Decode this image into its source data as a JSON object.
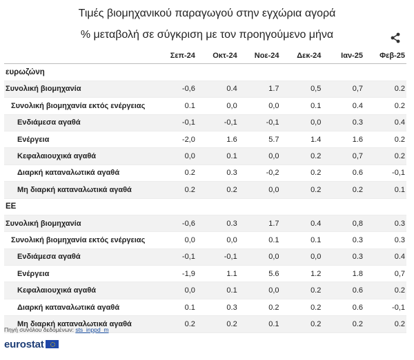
{
  "title_line1": "Τιμές βιομηχανικού παραγωγού στην εγχώρια αγορά",
  "title_line2": "% μεταβολή σε σύγκριση με τον προηγούμενο μήνα",
  "share_icon": "share-icon",
  "columns": [
    "Σεπ-24",
    "Οκτ-24",
    "Νοε-24",
    "Δεκ-24",
    "Ιαν-25",
    "Φεβ-25"
  ],
  "groups": [
    {
      "name": "ευρωζώνη",
      "rows": [
        {
          "label": "Συνολική βιομηχανία",
          "level": 0,
          "values": [
            "-0,6",
            "0.4",
            "1.7",
            "0,5",
            "0,7",
            "0.2"
          ]
        },
        {
          "label": "Συνολική βιομηχανία εκτός ενέργειας",
          "level": 1,
          "values": [
            "0.1",
            "0,0",
            "0,0",
            "0.1",
            "0.4",
            "0.2"
          ]
        },
        {
          "label": "Ενδιάμεσα αγαθά",
          "level": 2,
          "values": [
            "-0,1",
            "-0,1",
            "-0,1",
            "0,0",
            "0.3",
            "0.4"
          ]
        },
        {
          "label": "Ενέργεια",
          "level": 2,
          "values": [
            "-2,0",
            "1.6",
            "5.7",
            "1.4",
            "1.6",
            "0.2"
          ]
        },
        {
          "label": "Κεφαλαιουχικά αγαθά",
          "level": 2,
          "values": [
            "0,0",
            "0.1",
            "0,0",
            "0.2",
            "0,7",
            "0.2"
          ]
        },
        {
          "label": "Διαρκή καταναλωτικά αγαθά",
          "level": 2,
          "values": [
            "0.2",
            "0.3",
            "-0,2",
            "0.2",
            "0.6",
            "-0,1"
          ]
        },
        {
          "label": "Μη διαρκή καταναλωτικά αγαθά",
          "level": 2,
          "values": [
            "0.2",
            "0.2",
            "0,0",
            "0.2",
            "0.2",
            "0.1"
          ]
        }
      ]
    },
    {
      "name": "ΕΕ",
      "rows": [
        {
          "label": "Συνολική βιομηχανία",
          "level": 0,
          "values": [
            "-0,6",
            "0.3",
            "1.7",
            "0.4",
            "0,8",
            "0.3"
          ]
        },
        {
          "label": "Συνολική βιομηχανία εκτός ενέργειας",
          "level": 1,
          "values": [
            "0,0",
            "0,0",
            "0.1",
            "0.1",
            "0.3",
            "0.3"
          ]
        },
        {
          "label": "Ενδιάμεσα αγαθά",
          "level": 2,
          "values": [
            "-0,1",
            "-0,1",
            "0,0",
            "0,0",
            "0.3",
            "0.4"
          ]
        },
        {
          "label": "Ενέργεια",
          "level": 2,
          "values": [
            "-1,9",
            "1.1",
            "5.6",
            "1.2",
            "1.8",
            "0,7"
          ]
        },
        {
          "label": "Κεφαλαιουχικά αγαθά",
          "level": 2,
          "values": [
            "0,0",
            "0.1",
            "0,0",
            "0.2",
            "0.6",
            "0.2"
          ]
        },
        {
          "label": "Διαρκή καταναλωτικά αγαθά",
          "level": 2,
          "values": [
            "0.1",
            "0.3",
            "0.2",
            "0.2",
            "0.6",
            "-0,1"
          ]
        },
        {
          "label": "Μη διαρκή καταναλωτικά αγαθά",
          "level": 2,
          "values": [
            "0.2",
            "0.2",
            "0.1",
            "0.2",
            "0.2",
            "0.2"
          ]
        }
      ]
    }
  ],
  "source_prefix": "Πηγή συνόλου δεδομένων:",
  "source_link": "sts_inppd_m",
  "logo_text": "eurostat",
  "colors": {
    "shade": "#f2f2f2",
    "logo": "#1d3d76",
    "link": "#1a4fa0"
  }
}
